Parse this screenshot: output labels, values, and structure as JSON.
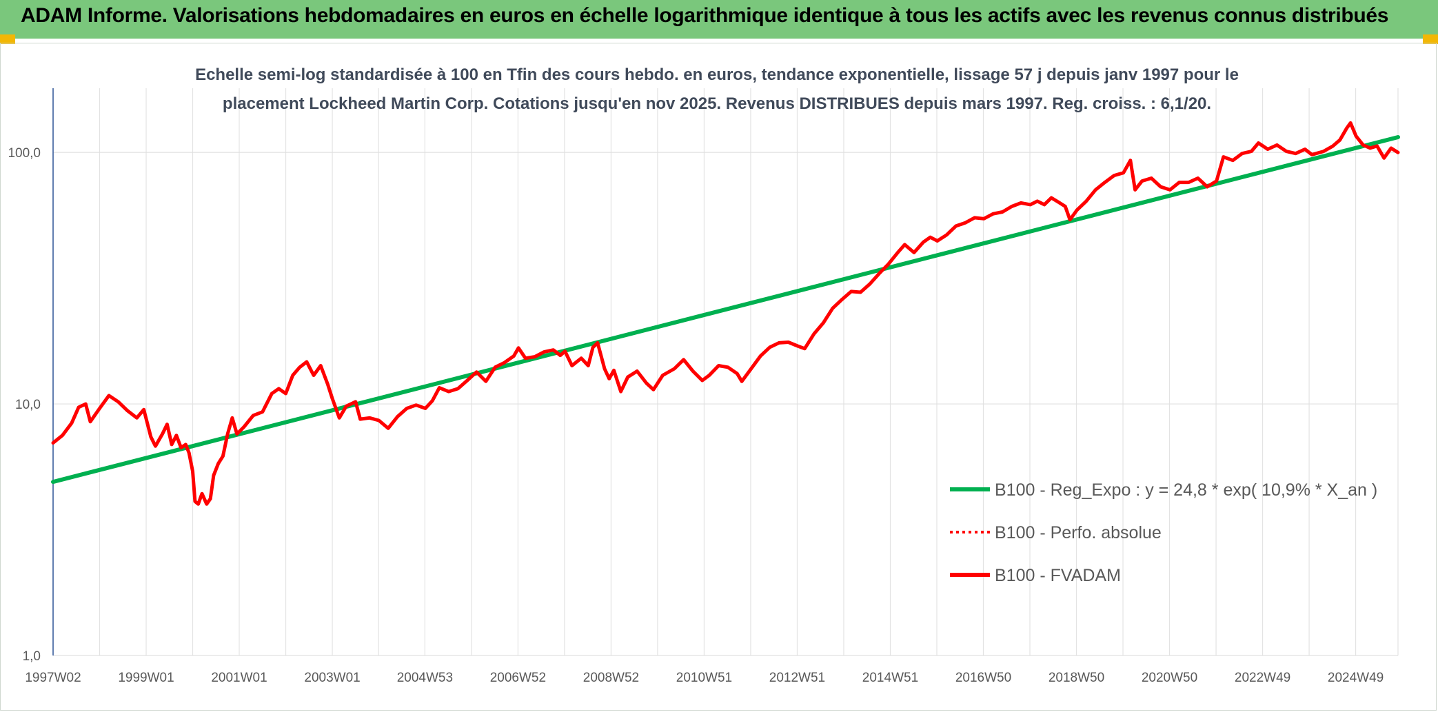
{
  "banner": {
    "title": "ADAM Informe. Valorisations hebdomadaires en euros en échelle logarithmique identique à tous les actifs avec les revenus connus distribués",
    "background_color": "#7ac77c",
    "corner_color": "#f2b705"
  },
  "chart_data": {
    "type": "line",
    "title_line1": "Echelle semi-log standardisée à 100 en Tfin des cours hebdo. en euros, tendance exponentielle, lissage 57 j depuis janv 1997 pour le",
    "title_line2": "placement Lockheed Martin Corp. Cotations jusqu'en nov 2025. Revenus DISTRIBUES depuis mars 1997. Reg. croiss. : 6,1/20.",
    "y_scale": "log",
    "ylim": [
      1,
      180
    ],
    "y_ticks": [
      {
        "value": 1,
        "label": "1,0"
      },
      {
        "value": 10,
        "label": "10,0"
      },
      {
        "value": 100,
        "label": "100,0"
      }
    ],
    "xlim": [
      1997.0,
      2025.9
    ],
    "x_ticks": [
      {
        "x": 1997.0,
        "label": "1997W02"
      },
      {
        "x": 1999.0,
        "label": "1999W01"
      },
      {
        "x": 2001.0,
        "label": "2001W01"
      },
      {
        "x": 2003.0,
        "label": "2003W01"
      },
      {
        "x": 2004.99,
        "label": "2004W53"
      },
      {
        "x": 2006.99,
        "label": "2006W52"
      },
      {
        "x": 2008.99,
        "label": "2008W52"
      },
      {
        "x": 2010.99,
        "label": "2010W51"
      },
      {
        "x": 2012.99,
        "label": "2012W51"
      },
      {
        "x": 2014.99,
        "label": "2014W51"
      },
      {
        "x": 2016.99,
        "label": "2016W50"
      },
      {
        "x": 2018.99,
        "label": "2018W50"
      },
      {
        "x": 2020.99,
        "label": "2020W50"
      },
      {
        "x": 2022.99,
        "label": "2022W49"
      },
      {
        "x": 2024.99,
        "label": "2024W49"
      }
    ],
    "grid": true,
    "legend_position": "bottom-right",
    "series": [
      {
        "name": "B100 - Reg_Expo : y = 24,8 * exp( 10,9% *  X_an )",
        "color": "#00b050",
        "style": "solid",
        "points": [
          [
            1997.0,
            4.9
          ],
          [
            2025.9,
            115
          ]
        ]
      },
      {
        "name": "B100 - Perfo. absolue",
        "color": "#ff0000",
        "style": "dotted",
        "points": []
      },
      {
        "name": "B100 - FVADAM",
        "color": "#ff0000",
        "style": "solid",
        "points": [
          [
            1997.0,
            7.0
          ],
          [
            1997.2,
            7.5
          ],
          [
            1997.4,
            8.4
          ],
          [
            1997.55,
            9.7
          ],
          [
            1997.7,
            10.0
          ],
          [
            1997.8,
            8.5
          ],
          [
            1998.0,
            9.6
          ],
          [
            1998.2,
            10.8
          ],
          [
            1998.4,
            10.2
          ],
          [
            1998.6,
            9.4
          ],
          [
            1998.8,
            8.8
          ],
          [
            1998.95,
            9.5
          ],
          [
            1999.1,
            7.4
          ],
          [
            1999.2,
            6.8
          ],
          [
            1999.35,
            7.6
          ],
          [
            1999.45,
            8.3
          ],
          [
            1999.55,
            6.9
          ],
          [
            1999.65,
            7.5
          ],
          [
            1999.75,
            6.7
          ],
          [
            1999.85,
            6.9
          ],
          [
            1999.92,
            6.4
          ],
          [
            2000.0,
            5.4
          ],
          [
            2000.05,
            4.1
          ],
          [
            2000.12,
            4.0
          ],
          [
            2000.2,
            4.4
          ],
          [
            2000.3,
            4.0
          ],
          [
            2000.38,
            4.2
          ],
          [
            2000.45,
            5.2
          ],
          [
            2000.55,
            5.8
          ],
          [
            2000.65,
            6.2
          ],
          [
            2000.75,
            7.6
          ],
          [
            2000.85,
            8.8
          ],
          [
            2000.95,
            7.6
          ],
          [
            2001.1,
            8.1
          ],
          [
            2001.3,
            9.0
          ],
          [
            2001.5,
            9.3
          ],
          [
            2001.7,
            11.0
          ],
          [
            2001.85,
            11.5
          ],
          [
            2002.0,
            11.0
          ],
          [
            2002.15,
            13.0
          ],
          [
            2002.3,
            14.0
          ],
          [
            2002.45,
            14.7
          ],
          [
            2002.6,
            13.0
          ],
          [
            2002.75,
            14.2
          ],
          [
            2002.9,
            12.0
          ],
          [
            2003.0,
            10.5
          ],
          [
            2003.15,
            8.8
          ],
          [
            2003.3,
            9.8
          ],
          [
            2003.5,
            10.2
          ],
          [
            2003.6,
            8.7
          ],
          [
            2003.8,
            8.8
          ],
          [
            2004.0,
            8.6
          ],
          [
            2004.2,
            8.0
          ],
          [
            2004.4,
            8.9
          ],
          [
            2004.6,
            9.6
          ],
          [
            2004.8,
            9.9
          ],
          [
            2005.0,
            9.6
          ],
          [
            2005.15,
            10.3
          ],
          [
            2005.3,
            11.6
          ],
          [
            2005.5,
            11.2
          ],
          [
            2005.7,
            11.5
          ],
          [
            2005.9,
            12.4
          ],
          [
            2006.1,
            13.4
          ],
          [
            2006.3,
            12.3
          ],
          [
            2006.5,
            14.0
          ],
          [
            2006.7,
            14.6
          ],
          [
            2006.9,
            15.5
          ],
          [
            2007.0,
            16.7
          ],
          [
            2007.15,
            15.2
          ],
          [
            2007.35,
            15.4
          ],
          [
            2007.55,
            16.1
          ],
          [
            2007.75,
            16.4
          ],
          [
            2007.9,
            15.6
          ],
          [
            2008.0,
            16.2
          ],
          [
            2008.15,
            14.2
          ],
          [
            2008.35,
            15.2
          ],
          [
            2008.5,
            14.2
          ],
          [
            2008.6,
            16.8
          ],
          [
            2008.7,
            17.5
          ],
          [
            2008.85,
            13.8
          ],
          [
            2008.95,
            12.6
          ],
          [
            2009.05,
            13.6
          ],
          [
            2009.2,
            11.2
          ],
          [
            2009.35,
            12.8
          ],
          [
            2009.55,
            13.5
          ],
          [
            2009.75,
            12.1
          ],
          [
            2009.9,
            11.4
          ],
          [
            2010.1,
            13.0
          ],
          [
            2010.35,
            13.8
          ],
          [
            2010.55,
            15.0
          ],
          [
            2010.75,
            13.5
          ],
          [
            2010.95,
            12.4
          ],
          [
            2011.1,
            13.0
          ],
          [
            2011.3,
            14.2
          ],
          [
            2011.5,
            14.0
          ],
          [
            2011.7,
            13.2
          ],
          [
            2011.8,
            12.3
          ],
          [
            2012.0,
            13.8
          ],
          [
            2012.2,
            15.5
          ],
          [
            2012.4,
            16.8
          ],
          [
            2012.6,
            17.5
          ],
          [
            2012.8,
            17.6
          ],
          [
            2013.0,
            17.0
          ],
          [
            2013.15,
            16.6
          ],
          [
            2013.35,
            19.0
          ],
          [
            2013.55,
            21.0
          ],
          [
            2013.75,
            24.0
          ],
          [
            2013.95,
            26.0
          ],
          [
            2014.15,
            28.0
          ],
          [
            2014.35,
            27.8
          ],
          [
            2014.55,
            30.0
          ],
          [
            2014.75,
            33.0
          ],
          [
            2014.95,
            36.0
          ],
          [
            2015.15,
            40.0
          ],
          [
            2015.3,
            43.0
          ],
          [
            2015.5,
            40.0
          ],
          [
            2015.7,
            44.0
          ],
          [
            2015.85,
            46.0
          ],
          [
            2016.0,
            44.5
          ],
          [
            2016.2,
            47.0
          ],
          [
            2016.4,
            51.0
          ],
          [
            2016.6,
            52.5
          ],
          [
            2016.8,
            55.0
          ],
          [
            2017.0,
            54.5
          ],
          [
            2017.2,
            57.0
          ],
          [
            2017.4,
            58.0
          ],
          [
            2017.6,
            61.0
          ],
          [
            2017.8,
            63.0
          ],
          [
            2018.0,
            62.0
          ],
          [
            2018.15,
            64.0
          ],
          [
            2018.3,
            62.0
          ],
          [
            2018.45,
            66.0
          ],
          [
            2018.6,
            63.5
          ],
          [
            2018.75,
            61.0
          ],
          [
            2018.85,
            54.0
          ],
          [
            2019.0,
            59.0
          ],
          [
            2019.2,
            64.0
          ],
          [
            2019.4,
            71.0
          ],
          [
            2019.6,
            76.0
          ],
          [
            2019.8,
            81.0
          ],
          [
            2020.0,
            83.0
          ],
          [
            2020.15,
            93.0
          ],
          [
            2020.25,
            71.0
          ],
          [
            2020.4,
            77.0
          ],
          [
            2020.6,
            79.0
          ],
          [
            2020.8,
            73.0
          ],
          [
            2021.0,
            71.0
          ],
          [
            2021.2,
            76.0
          ],
          [
            2021.4,
            76.0
          ],
          [
            2021.6,
            79.0
          ],
          [
            2021.8,
            73.0
          ],
          [
            2022.0,
            77.0
          ],
          [
            2022.15,
            96.0
          ],
          [
            2022.35,
            93.0
          ],
          [
            2022.55,
            99.0
          ],
          [
            2022.75,
            101.0
          ],
          [
            2022.9,
            109.0
          ],
          [
            2023.1,
            103.0
          ],
          [
            2023.3,
            107.0
          ],
          [
            2023.5,
            101.0
          ],
          [
            2023.7,
            99.0
          ],
          [
            2023.9,
            103.0
          ],
          [
            2024.05,
            98.0
          ],
          [
            2024.3,
            101.0
          ],
          [
            2024.5,
            106.0
          ],
          [
            2024.65,
            112.0
          ],
          [
            2024.8,
            125.0
          ],
          [
            2024.88,
            131.0
          ],
          [
            2025.0,
            116.0
          ],
          [
            2025.15,
            107.0
          ],
          [
            2025.3,
            104.0
          ],
          [
            2025.45,
            106.0
          ],
          [
            2025.6,
            95.0
          ],
          [
            2025.75,
            104.0
          ],
          [
            2025.9,
            100.0
          ]
        ]
      }
    ]
  }
}
